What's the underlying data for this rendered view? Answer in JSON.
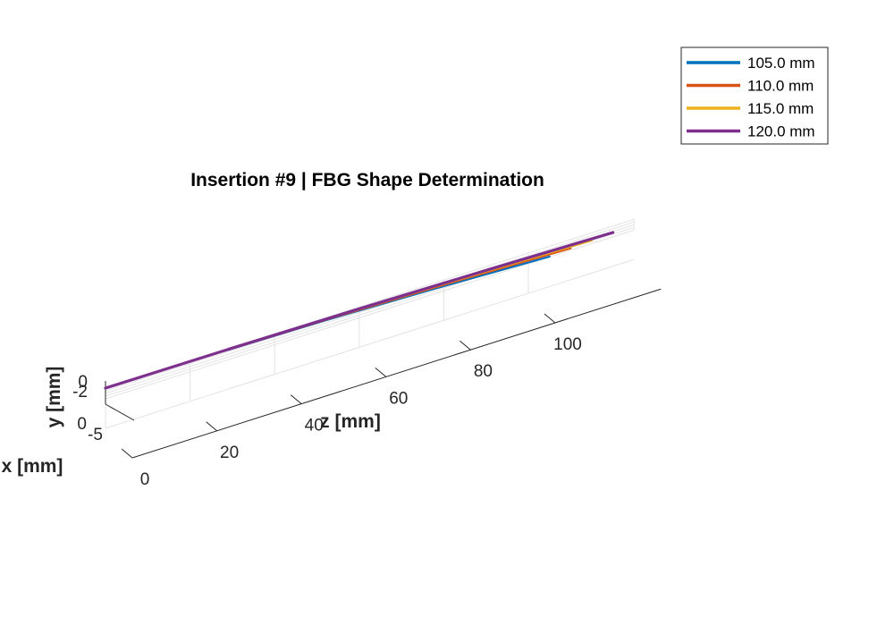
{
  "chart_data": {
    "type": "line",
    "view": "3d",
    "title": "Insertion #9 | FBG Shape Determination",
    "xlabel": "x [mm]",
    "ylabel": "y [mm]",
    "zlabel": "z [mm]",
    "z_ticks": [
      "0",
      "20",
      "40",
      "60",
      "80",
      "100"
    ],
    "y_ticks": [
      "0",
      "-2"
    ],
    "x_ticks": [
      "0",
      "-5"
    ],
    "zlim": [
      0,
      125
    ],
    "grid": true,
    "legend_position": "top-right",
    "series": [
      {
        "name": "105.0 mm",
        "color": "#0072BD",
        "z": [
          0,
          26,
          52,
          78,
          105
        ],
        "y": [
          0,
          -0.06,
          -0.2,
          -0.5,
          -0.9
        ],
        "x": [
          0,
          -0.1,
          -0.4,
          -0.9,
          -1.6
        ]
      },
      {
        "name": "110.0 mm",
        "color": "#D95319",
        "z": [
          0,
          27.5,
          55,
          82.5,
          110
        ],
        "y": [
          0,
          -0.06,
          -0.2,
          -0.5,
          -0.9
        ],
        "x": [
          0,
          -0.1,
          -0.35,
          -0.75,
          -1.3
        ]
      },
      {
        "name": "115.0 mm",
        "color": "#EDB120",
        "z": [
          0,
          28.75,
          57.5,
          86.25,
          115
        ],
        "y": [
          0,
          -0.05,
          -0.2,
          -0.45,
          -0.85
        ],
        "x": [
          0,
          -0.08,
          -0.3,
          -0.65,
          -1.1
        ]
      },
      {
        "name": "120.0 mm",
        "color": "#7E2F8E",
        "z": [
          0,
          30,
          60,
          90,
          120
        ],
        "y": [
          0,
          -0.05,
          -0.18,
          -0.4,
          -0.75
        ],
        "x": [
          0,
          -0.07,
          -0.25,
          -0.55,
          -0.9
        ]
      }
    ]
  }
}
